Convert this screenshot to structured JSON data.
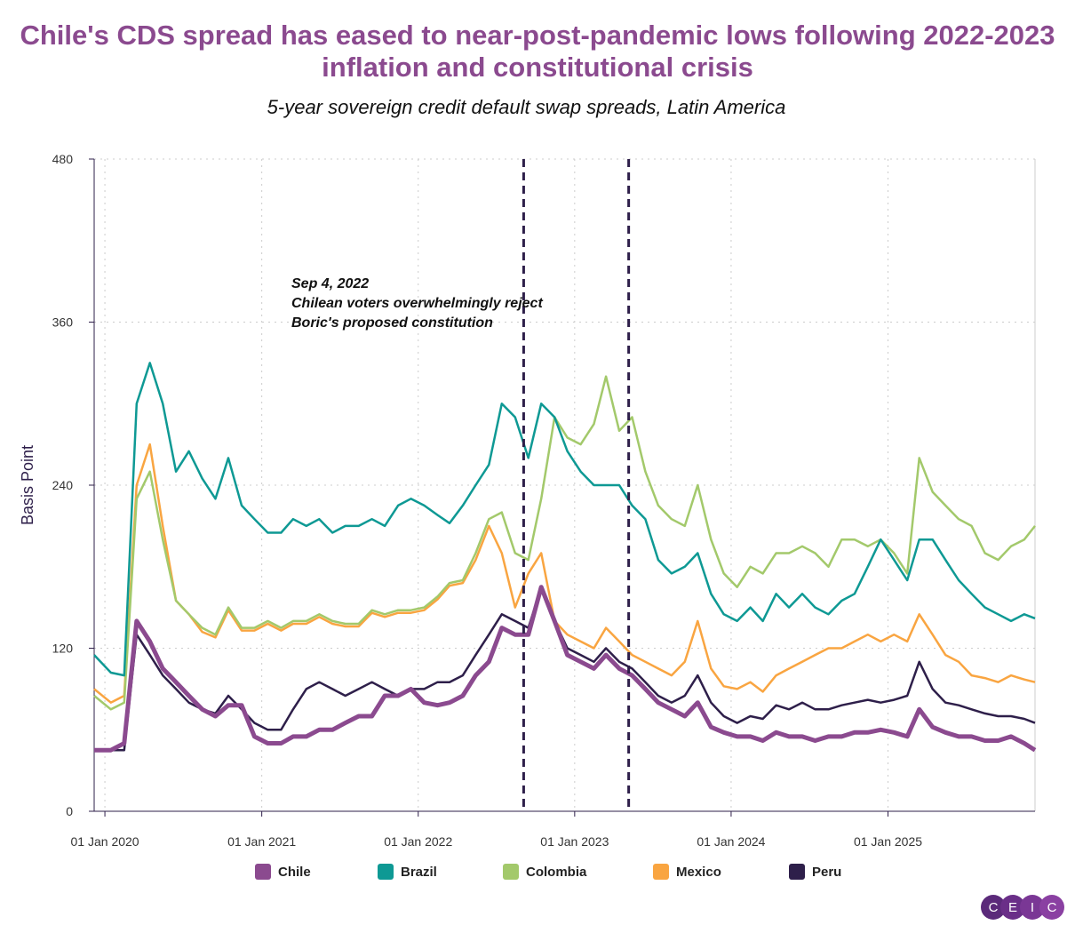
{
  "title": "Chile's CDS spread has eased to near-post-pandemic lows following 2022-2023 inflation and constitutional crisis",
  "subtitle": "5-year sovereign credit default swap spreads, Latin America",
  "logo": "CEIC",
  "chart_data": {
    "type": "line",
    "ylabel": "Basis Point",
    "ylim": [
      0,
      480
    ],
    "yticks": [
      0,
      120,
      240,
      360,
      480
    ],
    "xlim": [
      "2019-12-07",
      "2025-12-10"
    ],
    "xticks": [
      "01 Jan 2020",
      "01 Jan 2021",
      "01 Jan 2022",
      "01 Jan 2023",
      "01 Jan 2024",
      "01 Jan 2025"
    ],
    "grid": true,
    "legend_position": "bottom",
    "event_lines": [
      "2022-09-04",
      "2023-05-07"
    ],
    "annotation": {
      "date": "2022-09-04",
      "lines": [
        "Sep 4, 2022",
        "Chilean voters overwhelmingly reject",
        "Boric's proposed constitution"
      ]
    },
    "x": [
      "2019-12",
      "2020-01",
      "2020-02",
      "2020-03",
      "2020-04",
      "2020-05",
      "2020-06",
      "2020-07",
      "2020-08",
      "2020-09",
      "2020-10",
      "2020-11",
      "2020-12",
      "2021-01",
      "2021-02",
      "2021-03",
      "2021-04",
      "2021-05",
      "2021-06",
      "2021-07",
      "2021-08",
      "2021-09",
      "2021-10",
      "2021-11",
      "2021-12",
      "2022-01",
      "2022-02",
      "2022-03",
      "2022-04",
      "2022-05",
      "2022-06",
      "2022-07",
      "2022-08",
      "2022-09",
      "2022-10",
      "2022-11",
      "2022-12",
      "2023-01",
      "2023-02",
      "2023-03",
      "2023-04",
      "2023-05",
      "2023-06",
      "2023-07",
      "2023-08",
      "2023-09",
      "2023-10",
      "2023-11",
      "2023-12",
      "2024-01",
      "2024-02",
      "2024-03",
      "2024-04",
      "2024-05",
      "2024-06",
      "2024-07",
      "2024-08",
      "2024-09",
      "2024-10",
      "2024-11",
      "2024-12",
      "2025-01",
      "2025-02",
      "2025-03",
      "2025-04",
      "2025-05",
      "2025-06",
      "2025-07",
      "2025-08",
      "2025-09",
      "2025-10",
      "2025-11",
      "2025-12"
    ],
    "series": [
      {
        "name": "Chile",
        "color": "#8b4a8f",
        "values": [
          45,
          45,
          50,
          140,
          125,
          105,
          95,
          85,
          75,
          70,
          78,
          78,
          55,
          50,
          50,
          55,
          55,
          60,
          60,
          65,
          70,
          70,
          85,
          85,
          90,
          80,
          78,
          80,
          85,
          100,
          110,
          135,
          130,
          130,
          165,
          140,
          115,
          110,
          105,
          115,
          105,
          100,
          90,
          80,
          75,
          70,
          80,
          62,
          58,
          55,
          55,
          52,
          58,
          55,
          55,
          52,
          55,
          55,
          58,
          58,
          60,
          58,
          55,
          75,
          62,
          58,
          55,
          55,
          52,
          52,
          55,
          50,
          45
        ]
      },
      {
        "name": "Brazil",
        "color": "#0e9994",
        "values": [
          115,
          102,
          100,
          300,
          330,
          300,
          250,
          265,
          245,
          230,
          260,
          225,
          215,
          205,
          205,
          215,
          210,
          215,
          205,
          210,
          210,
          215,
          210,
          225,
          230,
          225,
          218,
          212,
          225,
          240,
          255,
          300,
          290,
          260,
          300,
          290,
          265,
          250,
          240,
          240,
          240,
          225,
          215,
          185,
          175,
          180,
          190,
          160,
          145,
          140,
          150,
          140,
          160,
          150,
          160,
          150,
          145,
          155,
          160,
          180,
          200,
          185,
          170,
          200,
          200,
          185,
          170,
          160,
          150,
          145,
          140,
          145,
          142
        ]
      },
      {
        "name": "Colombia",
        "color": "#a3c96b",
        "values": [
          85,
          75,
          80,
          230,
          250,
          200,
          155,
          145,
          135,
          130,
          150,
          135,
          135,
          140,
          135,
          140,
          140,
          145,
          140,
          138,
          138,
          148,
          145,
          148,
          148,
          150,
          158,
          168,
          170,
          190,
          215,
          220,
          190,
          185,
          230,
          290,
          275,
          270,
          285,
          320,
          280,
          290,
          250,
          225,
          215,
          210,
          240,
          200,
          175,
          165,
          180,
          175,
          190,
          190,
          195,
          190,
          180,
          200,
          200,
          195,
          200,
          190,
          175,
          260,
          235,
          225,
          215,
          210,
          190,
          185,
          195,
          200,
          210
        ]
      },
      {
        "name": "Mexico",
        "color": "#f9a541",
        "values": [
          90,
          80,
          85,
          240,
          270,
          210,
          155,
          145,
          132,
          128,
          148,
          133,
          133,
          138,
          133,
          138,
          138,
          143,
          138,
          136,
          136,
          146,
          143,
          146,
          146,
          148,
          156,
          166,
          168,
          185,
          210,
          190,
          150,
          175,
          190,
          140,
          130,
          125,
          120,
          135,
          125,
          115,
          110,
          105,
          100,
          110,
          140,
          105,
          92,
          90,
          95,
          88,
          100,
          105,
          110,
          115,
          120,
          120,
          125,
          130,
          125,
          130,
          125,
          145,
          130,
          115,
          110,
          100,
          98,
          95,
          100,
          97,
          95
        ]
      },
      {
        "name": "Peru",
        "color": "#2e1f4a",
        "values": [
          45,
          45,
          45,
          130,
          115,
          100,
          90,
          80,
          75,
          72,
          85,
          75,
          65,
          60,
          60,
          75,
          90,
          95,
          90,
          85,
          90,
          95,
          90,
          85,
          90,
          90,
          95,
          95,
          100,
          115,
          130,
          145,
          140,
          135,
          165,
          140,
          120,
          115,
          110,
          120,
          110,
          105,
          95,
          85,
          80,
          85,
          100,
          80,
          70,
          65,
          70,
          68,
          78,
          75,
          80,
          75,
          75,
          78,
          80,
          82,
          80,
          82,
          85,
          110,
          90,
          80,
          78,
          75,
          72,
          70,
          70,
          68,
          65
        ]
      }
    ]
  }
}
